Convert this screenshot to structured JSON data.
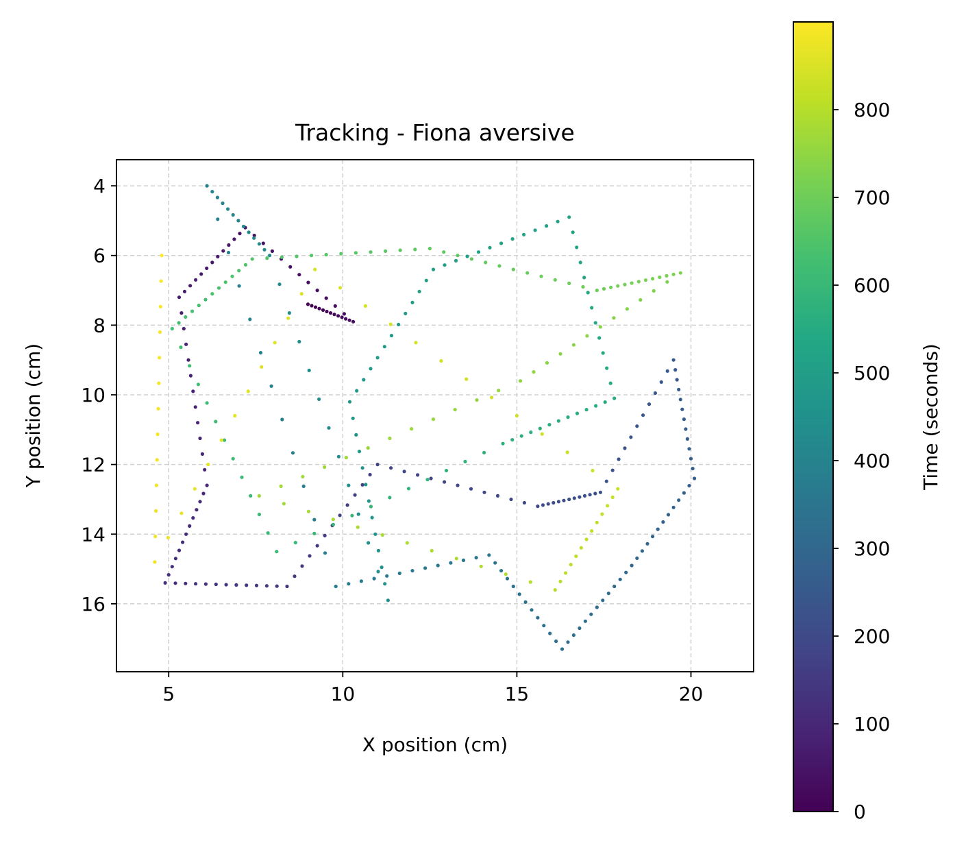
{
  "chart_data": {
    "type": "scatter",
    "title": "Tracking - Fiona aversive",
    "xlabel": "X position (cm)",
    "ylabel": "Y position (cm)",
    "xlim": [
      3.5,
      21.8
    ],
    "ylim": [
      17.95,
      3.25
    ],
    "y_inverted": true,
    "grid": true,
    "x_ticks": [
      5,
      10,
      15,
      20
    ],
    "y_ticks": [
      4,
      6,
      8,
      10,
      12,
      14,
      16
    ],
    "colorbar": {
      "label": "Time (seconds)",
      "colormap": "viridis",
      "range": [
        0,
        900
      ],
      "ticks": [
        0,
        100,
        200,
        300,
        400,
        500,
        600,
        700,
        800
      ]
    },
    "colormap_stops": [
      "#440154",
      "#482475",
      "#414487",
      "#355f8d",
      "#2a788e",
      "#21918c",
      "#22a884",
      "#44bf70",
      "#7ad151",
      "#bddf26",
      "#fde725"
    ],
    "trajectory": {
      "t": [
        0,
        25,
        50,
        75,
        100,
        125,
        150,
        175,
        200,
        225,
        250,
        275,
        300,
        325,
        350,
        375,
        400,
        425,
        450,
        475,
        500,
        525,
        550,
        575,
        600,
        625,
        650,
        675,
        700,
        725,
        750,
        775,
        800,
        825,
        850,
        875,
        900
      ],
      "x": [
        9.0,
        10.3,
        7.2,
        5.3,
        6.1,
        4.9,
        8.4,
        11.0,
        15.6,
        17.4,
        19.5,
        20.1,
        18.3,
        16.3,
        14.2,
        9.8,
        6.1,
        7.9,
        11.3,
        10.2,
        12.6,
        16.5,
        17.8,
        14.6,
        8.1,
        5.1,
        7.4,
        12.5,
        17.3,
        19.7,
        15.1,
        7.6,
        16.1,
        17.9,
        9.2,
        4.6,
        4.8
      ],
      "y": [
        7.4,
        7.9,
        5.2,
        7.2,
        12.6,
        15.4,
        15.5,
        12.0,
        13.2,
        12.8,
        9.0,
        12.4,
        14.9,
        17.3,
        14.6,
        15.5,
        4.0,
        6.0,
        15.9,
        10.2,
        6.4,
        4.9,
        10.1,
        11.4,
        14.5,
        8.1,
        6.1,
        5.8,
        7.0,
        6.5,
        9.6,
        12.9,
        15.6,
        12.7,
        6.4,
        14.8,
        6.0
      ]
    }
  }
}
